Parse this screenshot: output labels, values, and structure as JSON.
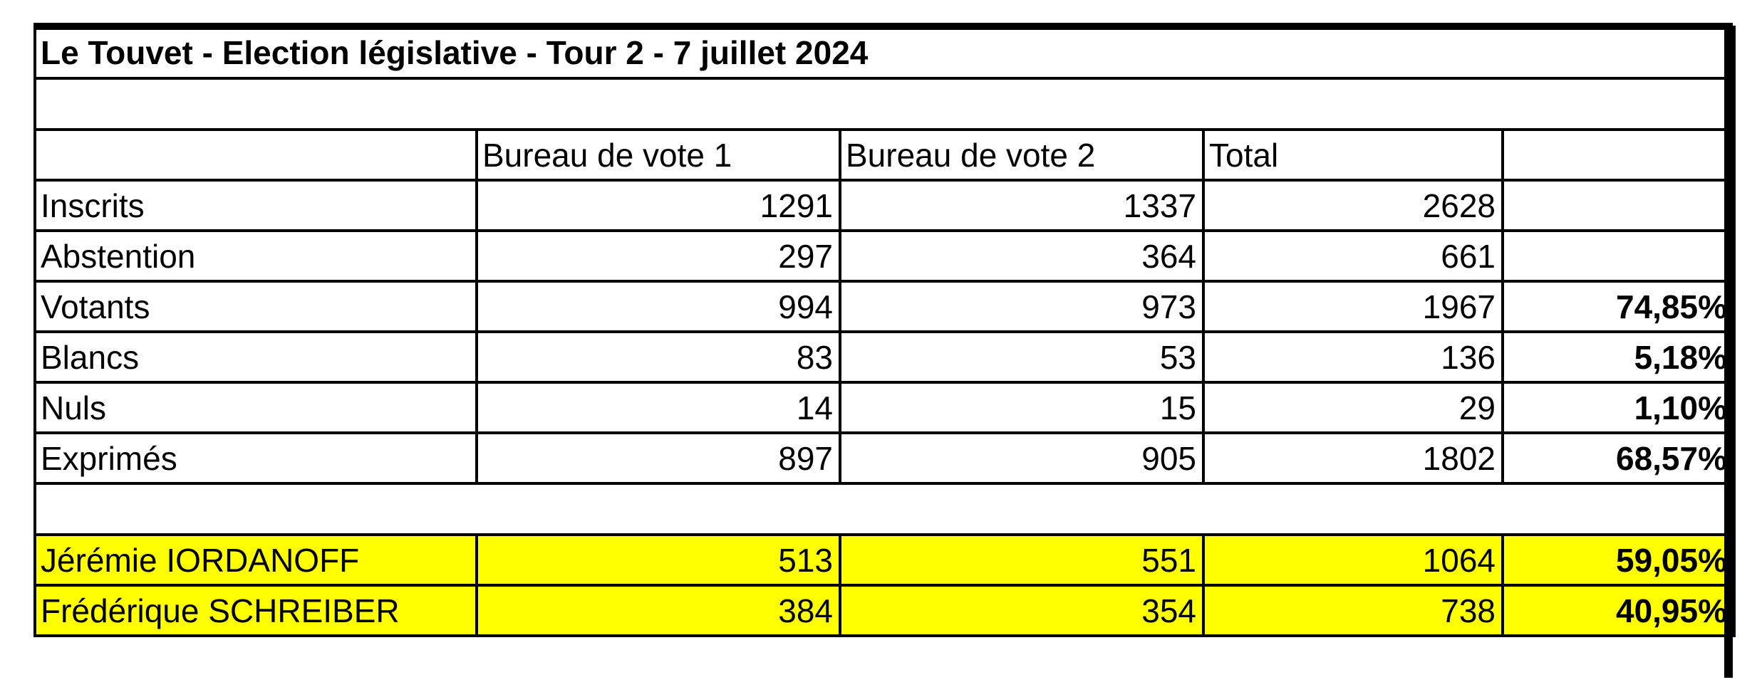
{
  "title": "Le Touvet - Election législative - Tour 2 - 7 juillet 2024",
  "headers": [
    "",
    "Bureau de vote 1",
    "Bureau de vote 2",
    "Total",
    ""
  ],
  "stats_rows": [
    {
      "label": "Inscrits",
      "bv1": "1291",
      "bv2": "1337",
      "total": "2628",
      "pct": ""
    },
    {
      "label": "Abstention",
      "bv1": "297",
      "bv2": "364",
      "total": "661",
      "pct": ""
    },
    {
      "label": "Votants",
      "bv1": "994",
      "bv2": "973",
      "total": "1967",
      "pct": "74,85%"
    },
    {
      "label": "Blancs",
      "bv1": "83",
      "bv2": "53",
      "total": "136",
      "pct": "5,18%"
    },
    {
      "label": "Nuls",
      "bv1": "14",
      "bv2": "15",
      "total": "29",
      "pct": "1,10%"
    },
    {
      "label": "Exprimés",
      "bv1": "897",
      "bv2": "905",
      "total": "1802",
      "pct": "68,57%"
    }
  ],
  "candidate_rows": [
    {
      "label": "Jérémie IORDANOFF",
      "bv1": "513",
      "bv2": "551",
      "total": "1064",
      "pct": "59,05%"
    },
    {
      "label": "Frédérique SCHREIBER",
      "bv1": "384",
      "bv2": "354",
      "total": "738",
      "pct": "40,95%"
    }
  ],
  "highlight_color": "#ffff00"
}
